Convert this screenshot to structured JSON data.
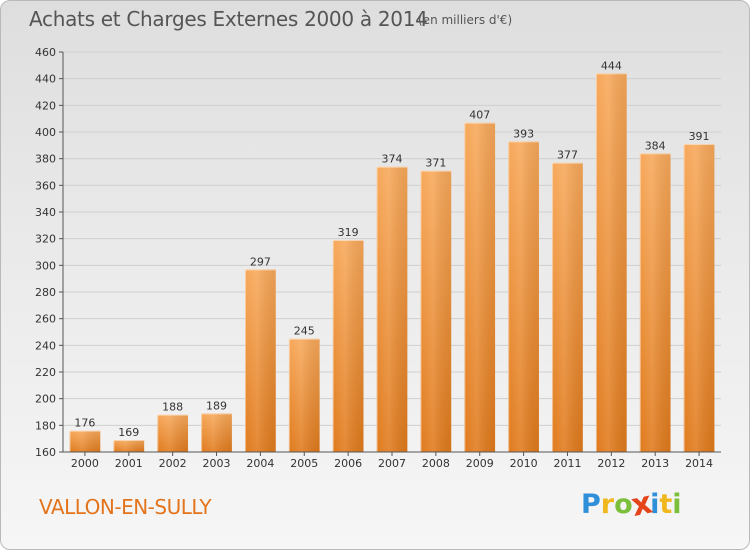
{
  "header": {
    "title": "Achats et Charges Externes 2000 à 2014",
    "subtitle": "(en milliers d'€)"
  },
  "footer": {
    "place": "VALLON-EN-SULLY",
    "logo": {
      "text": "Proxiti",
      "letters": [
        {
          "ch": "P",
          "color": "#2f8fd8"
        },
        {
          "ch": "r",
          "color": "#f0b81d"
        },
        {
          "ch": "o",
          "color": "#7cbf3b"
        },
        {
          "ch": "x",
          "color": "#e4451b"
        },
        {
          "ch": "i",
          "color": "#2f8fd8"
        },
        {
          "ch": "t",
          "color": "#f0b81d"
        },
        {
          "ch": "i",
          "color": "#7cbf3b"
        }
      ]
    }
  },
  "colors": {
    "bar_light": "#f7a85a",
    "bar_dark": "#e07a1c",
    "grid": "#cfcfcf",
    "axis": "#555555"
  },
  "chart_data": {
    "type": "bar",
    "title": "Achats et Charges Externes 2000 à 2014",
    "subtitle": "(en milliers d'€)",
    "categories": [
      "2000",
      "2001",
      "2002",
      "2003",
      "2004",
      "2005",
      "2006",
      "2007",
      "2008",
      "2009",
      "2010",
      "2011",
      "2012",
      "2013",
      "2014"
    ],
    "values": [
      176,
      169,
      188,
      189,
      297,
      245,
      319,
      374,
      371,
      407,
      393,
      377,
      444,
      384,
      391
    ],
    "ylim": [
      160,
      460
    ],
    "yticks": [
      160,
      180,
      200,
      220,
      240,
      260,
      280,
      300,
      320,
      340,
      360,
      380,
      400,
      420,
      440,
      460
    ],
    "grid": true,
    "legend": "none"
  }
}
